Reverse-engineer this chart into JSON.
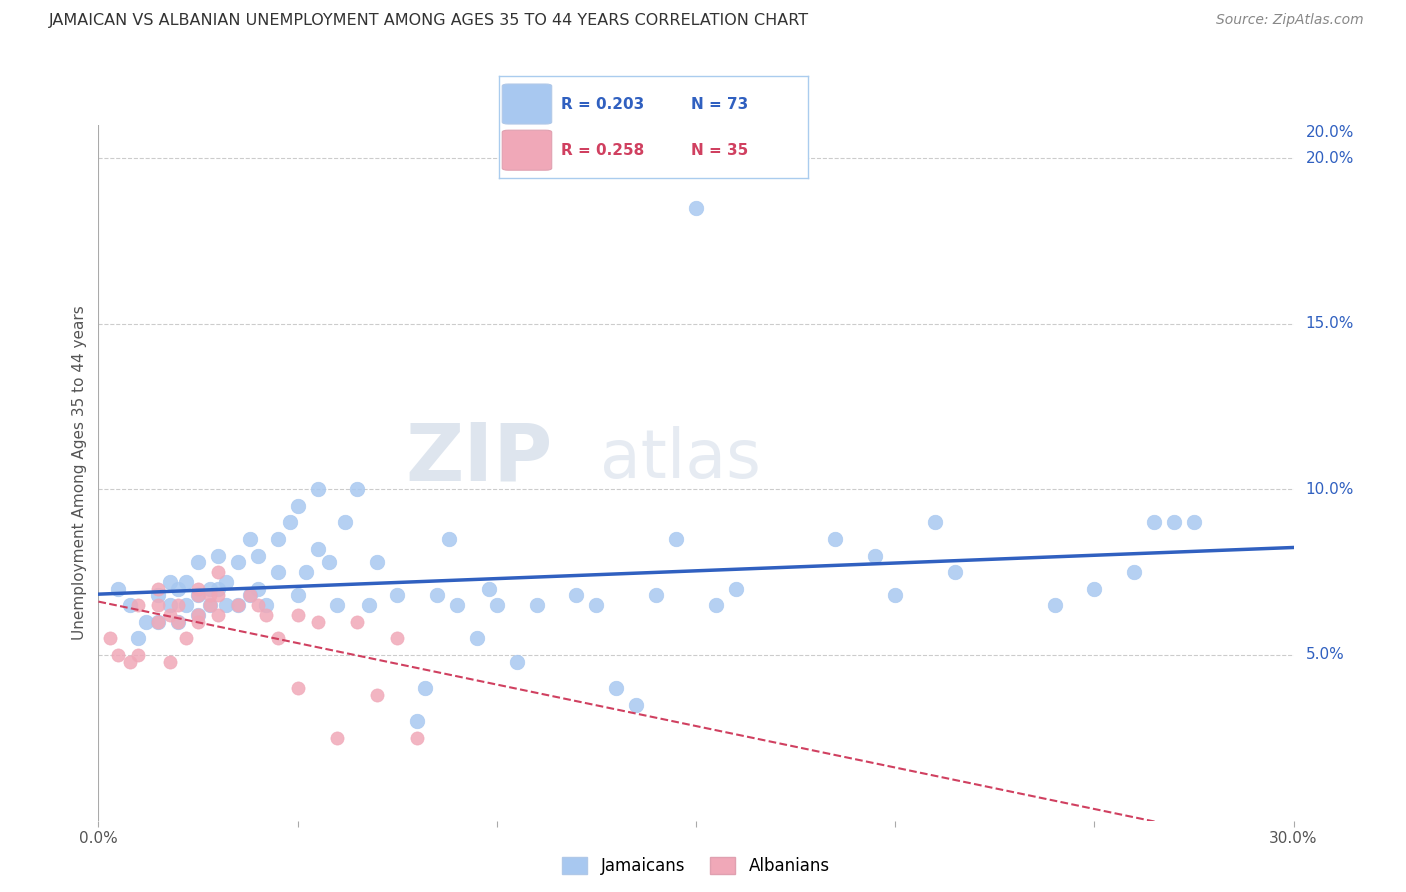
{
  "title": "JAMAICAN VS ALBANIAN UNEMPLOYMENT AMONG AGES 35 TO 44 YEARS CORRELATION CHART",
  "source": "Source: ZipAtlas.com",
  "ylabel": "Unemployment Among Ages 35 to 44 years",
  "xlim": [
    0.0,
    0.3
  ],
  "ylim": [
    0.0,
    0.21
  ],
  "xticks": [
    0.0,
    0.05,
    0.1,
    0.15,
    0.2,
    0.25,
    0.3
  ],
  "xticklabels": [
    "0.0%",
    "",
    "",
    "",
    "",
    "",
    "30.0%"
  ],
  "yticks": [
    0.05,
    0.1,
    0.15,
    0.2
  ],
  "yticklabels": [
    "5.0%",
    "10.0%",
    "15.0%",
    "20.0%"
  ],
  "jamaican_R": "0.203",
  "jamaican_N": "73",
  "albanian_R": "0.258",
  "albanian_N": "35",
  "jamaican_color": "#a8c8f0",
  "albanian_color": "#f0a8b8",
  "jamaican_line_color": "#3060c0",
  "albanian_line_color": "#d04060",
  "watermark_zip": "ZIP",
  "watermark_atlas": "atlas",
  "jamaican_x": [
    0.005,
    0.008,
    0.01,
    0.012,
    0.015,
    0.015,
    0.018,
    0.018,
    0.02,
    0.02,
    0.022,
    0.022,
    0.025,
    0.025,
    0.025,
    0.028,
    0.028,
    0.03,
    0.03,
    0.032,
    0.032,
    0.035,
    0.035,
    0.038,
    0.038,
    0.04,
    0.04,
    0.042,
    0.045,
    0.045,
    0.048,
    0.05,
    0.05,
    0.052,
    0.055,
    0.055,
    0.058,
    0.06,
    0.062,
    0.065,
    0.068,
    0.07,
    0.075,
    0.08,
    0.082,
    0.085,
    0.088,
    0.09,
    0.095,
    0.098,
    0.1,
    0.105,
    0.11,
    0.12,
    0.125,
    0.13,
    0.135,
    0.14,
    0.145,
    0.15,
    0.155,
    0.16,
    0.185,
    0.195,
    0.2,
    0.21,
    0.215,
    0.24,
    0.25,
    0.26,
    0.265,
    0.27,
    0.275
  ],
  "jamaican_y": [
    0.07,
    0.065,
    0.055,
    0.06,
    0.068,
    0.06,
    0.072,
    0.065,
    0.07,
    0.06,
    0.065,
    0.072,
    0.078,
    0.068,
    0.062,
    0.065,
    0.07,
    0.08,
    0.07,
    0.065,
    0.072,
    0.078,
    0.065,
    0.085,
    0.068,
    0.08,
    0.07,
    0.065,
    0.085,
    0.075,
    0.09,
    0.095,
    0.068,
    0.075,
    0.1,
    0.082,
    0.078,
    0.065,
    0.09,
    0.1,
    0.065,
    0.078,
    0.068,
    0.03,
    0.04,
    0.068,
    0.085,
    0.065,
    0.055,
    0.07,
    0.065,
    0.048,
    0.065,
    0.068,
    0.065,
    0.04,
    0.035,
    0.068,
    0.085,
    0.185,
    0.065,
    0.07,
    0.085,
    0.08,
    0.068,
    0.09,
    0.075,
    0.065,
    0.07,
    0.075,
    0.09,
    0.09,
    0.09
  ],
  "albanian_x": [
    0.003,
    0.005,
    0.008,
    0.01,
    0.01,
    0.015,
    0.015,
    0.015,
    0.018,
    0.018,
    0.02,
    0.02,
    0.022,
    0.025,
    0.025,
    0.025,
    0.025,
    0.028,
    0.028,
    0.03,
    0.03,
    0.03,
    0.035,
    0.038,
    0.04,
    0.042,
    0.045,
    0.05,
    0.05,
    0.055,
    0.06,
    0.065,
    0.07,
    0.075,
    0.08
  ],
  "albanian_y": [
    0.055,
    0.05,
    0.048,
    0.05,
    0.065,
    0.07,
    0.06,
    0.065,
    0.048,
    0.062,
    0.06,
    0.065,
    0.055,
    0.07,
    0.068,
    0.062,
    0.06,
    0.065,
    0.068,
    0.068,
    0.062,
    0.075,
    0.065,
    0.068,
    0.065,
    0.062,
    0.055,
    0.04,
    0.062,
    0.06,
    0.025,
    0.06,
    0.038,
    0.055,
    0.025
  ],
  "grid_color": "#cccccc",
  "tick_color": "#aaaaaa",
  "text_color": "#555555",
  "legend_box_color": "#e8f0f8",
  "legend_border_color": "#aaccee"
}
